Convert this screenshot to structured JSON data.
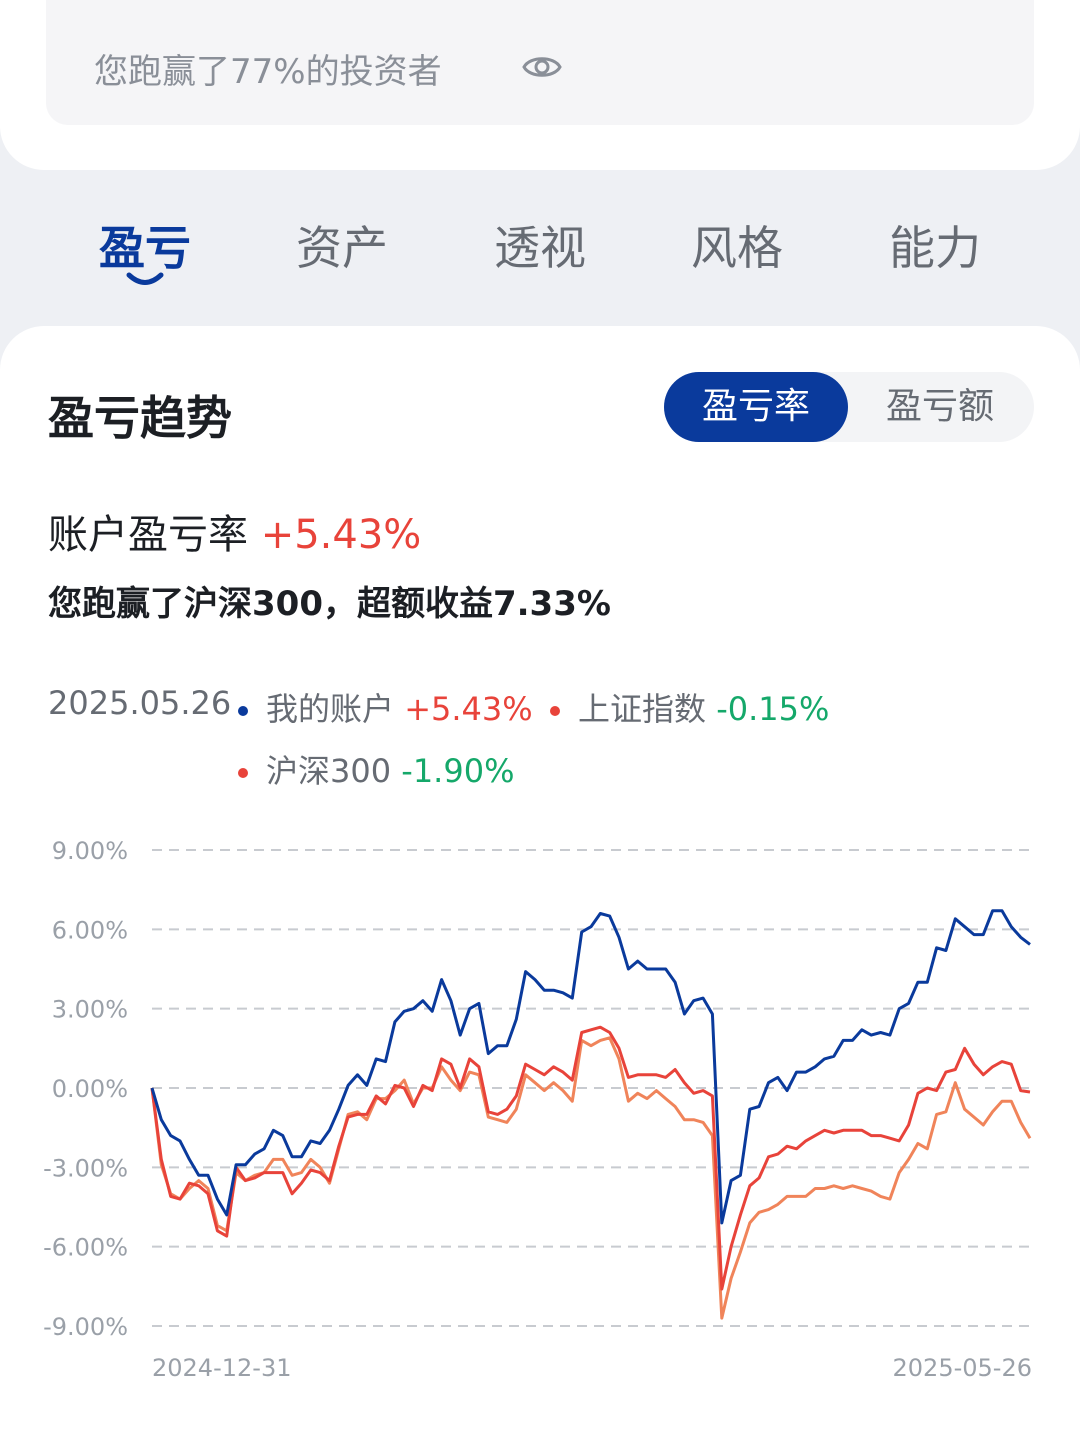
{
  "summary": {
    "beat_text": "您跑赢了77%的投资者"
  },
  "tabs": [
    {
      "label": "盈亏",
      "active": true
    },
    {
      "label": "资产",
      "active": false
    },
    {
      "label": "透视",
      "active": false
    },
    {
      "label": "风格",
      "active": false
    },
    {
      "label": "能力",
      "active": false
    }
  ],
  "section": {
    "title": "盈亏趋势",
    "toggle": {
      "rate": "盈亏率",
      "amount": "盈亏额",
      "selected": "盈亏率"
    },
    "rate_label": "账户盈亏率",
    "rate_value": "+5.43%",
    "beat_text": "您跑赢了沪深300，超额收益7.33%"
  },
  "legend": {
    "date": "2025.05.26",
    "items": [
      {
        "name": "我的账户",
        "value": "+5.43%",
        "color": "#0a3a9c"
      },
      {
        "name": "上证指数",
        "value": "-0.15%",
        "color": "#e8433a"
      },
      {
        "name": "沪深300",
        "value": "-1.90%",
        "color": "#f0845a"
      }
    ]
  },
  "chart_data": {
    "type": "line",
    "x_start": "2024-12-31",
    "x_end": "2025-05-26",
    "ylim": [
      -9,
      9
    ],
    "yticks": [
      "9.00%",
      "6.00%",
      "3.00%",
      "0.00%",
      "-3.00%",
      "-6.00%",
      "-9.00%"
    ],
    "grid": true,
    "series": [
      {
        "name": "我的账户",
        "color": "#0a3a9c",
        "values": [
          0,
          -1.2,
          -1.8,
          -2.0,
          -2.7,
          -3.3,
          -3.3,
          -4.2,
          -4.8,
          -2.9,
          -2.9,
          -2.5,
          -2.3,
          -1.6,
          -1.8,
          -2.6,
          -2.6,
          -2.0,
          -2.1,
          -1.6,
          -0.8,
          0.1,
          0.5,
          0.1,
          1.1,
          1.0,
          2.5,
          2.9,
          3.0,
          3.3,
          2.9,
          4.1,
          3.3,
          2.0,
          3.0,
          3.2,
          1.3,
          1.6,
          1.6,
          2.6,
          4.4,
          4.1,
          3.7,
          3.7,
          3.6,
          3.4,
          5.9,
          6.1,
          6.6,
          6.5,
          5.7,
          4.5,
          4.8,
          4.5,
          4.5,
          4.5,
          4.0,
          2.8,
          3.3,
          3.4,
          2.8,
          -5.1,
          -3.5,
          -3.3,
          -0.8,
          -0.7,
          0.2,
          0.4,
          -0.1,
          0.6,
          0.6,
          0.8,
          1.1,
          1.2,
          1.8,
          1.8,
          2.2,
          2.0,
          2.1,
          2.0,
          3.0,
          3.2,
          4.0,
          4.0,
          5.3,
          5.2,
          6.4,
          6.1,
          5.8,
          5.8,
          6.7,
          6.7,
          6.1,
          5.7,
          5.43
        ]
      },
      {
        "name": "上证指数",
        "color": "#e8433a",
        "values": [
          0,
          -2.7,
          -4.1,
          -4.2,
          -3.6,
          -3.7,
          -4.0,
          -5.4,
          -5.6,
          -3.0,
          -3.5,
          -3.4,
          -3.2,
          -3.2,
          -3.2,
          -4.0,
          -3.6,
          -3.1,
          -3.2,
          -3.5,
          -2.2,
          -1.1,
          -1.0,
          -1.0,
          -0.3,
          -0.6,
          0.1,
          0.0,
          -0.7,
          0.1,
          -0.1,
          1.1,
          0.9,
          0.0,
          1.1,
          0.8,
          -0.9,
          -1.0,
          -0.8,
          -0.3,
          0.9,
          0.7,
          0.5,
          0.8,
          0.6,
          0.3,
          2.1,
          2.2,
          2.3,
          2.1,
          1.5,
          0.4,
          0.5,
          0.5,
          0.5,
          0.4,
          0.7,
          0.2,
          -0.2,
          -0.1,
          -0.3,
          -7.6,
          -6.0,
          -4.8,
          -3.7,
          -3.4,
          -2.6,
          -2.5,
          -2.2,
          -2.3,
          -2.0,
          -1.8,
          -1.6,
          -1.7,
          -1.6,
          -1.6,
          -1.6,
          -1.8,
          -1.8,
          -1.9,
          -2.0,
          -1.4,
          -0.2,
          0.0,
          -0.1,
          0.6,
          0.7,
          1.5,
          0.9,
          0.5,
          0.8,
          1.0,
          0.9,
          -0.1,
          -0.15
        ]
      },
      {
        "name": "沪深300",
        "color": "#f0845a",
        "values": [
          0,
          -2.9,
          -4.0,
          -4.2,
          -3.8,
          -3.5,
          -3.8,
          -5.2,
          -5.4,
          -3.2,
          -3.5,
          -3.3,
          -3.2,
          -2.7,
          -2.7,
          -3.3,
          -3.2,
          -2.7,
          -3.0,
          -3.6,
          -2.3,
          -1.0,
          -0.9,
          -1.2,
          -0.4,
          -0.4,
          -0.1,
          0.3,
          -0.6,
          0.0,
          0.0,
          0.8,
          0.3,
          -0.1,
          0.6,
          0.5,
          -1.1,
          -1.2,
          -1.3,
          -0.8,
          0.5,
          0.2,
          -0.1,
          0.2,
          -0.1,
          -0.5,
          1.8,
          1.6,
          1.8,
          1.9,
          1.1,
          -0.5,
          -0.2,
          -0.4,
          -0.1,
          -0.4,
          -0.7,
          -1.2,
          -1.2,
          -1.3,
          -1.8,
          -8.7,
          -7.2,
          -6.2,
          -5.1,
          -4.7,
          -4.6,
          -4.4,
          -4.1,
          -4.1,
          -4.1,
          -3.8,
          -3.8,
          -3.7,
          -3.8,
          -3.7,
          -3.8,
          -3.9,
          -4.1,
          -4.2,
          -3.2,
          -2.7,
          -2.1,
          -2.3,
          -1.0,
          -0.9,
          0.2,
          -0.8,
          -1.1,
          -1.4,
          -0.9,
          -0.5,
          -0.5,
          -1.3,
          -1.9
        ]
      }
    ]
  }
}
